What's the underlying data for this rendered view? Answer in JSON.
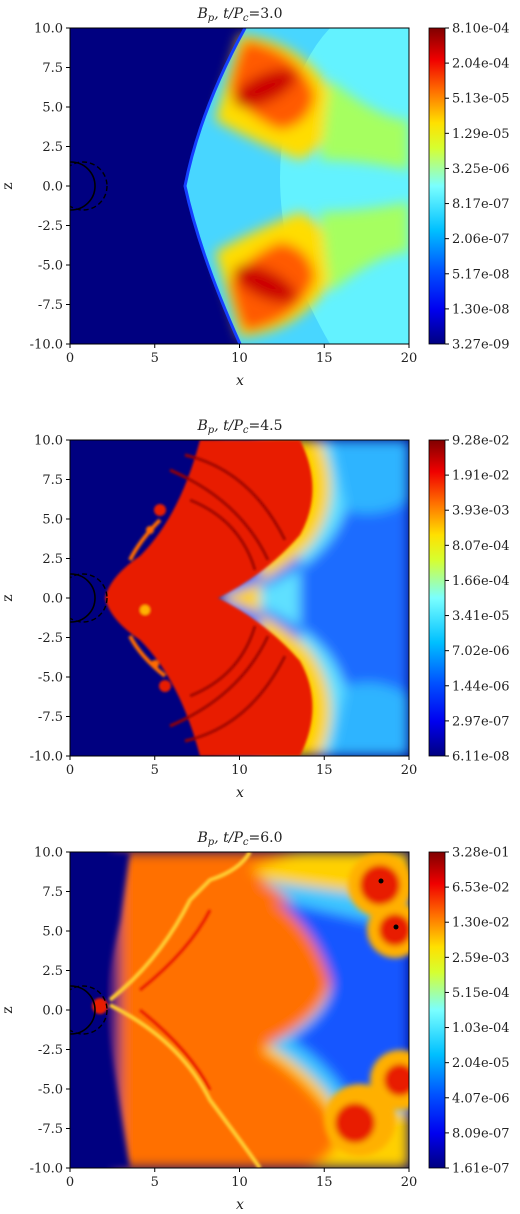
{
  "chart_data": [
    {
      "type": "heatmap",
      "title": "B_p, t/P_c=3.0",
      "title_var": "B",
      "title_sub": "p",
      "title_rest": ", t/P",
      "title_sub2": "c",
      "title_val": "=3.0",
      "xlabel": "x",
      "ylabel": "z",
      "xlim": [
        0,
        20
      ],
      "ylim": [
        -10,
        10
      ],
      "x_ticks": [
        "0",
        "5",
        "10",
        "15",
        "20"
      ],
      "y_ticks": [
        "10.0",
        "7.5",
        "5.0",
        "2.5",
        "0.0",
        "-2.5",
        "-5.0",
        "-7.5",
        "-10.0"
      ],
      "colorbar_labels": [
        "8.10e-04",
        "2.04e-04",
        "5.13e-05",
        "1.29e-05",
        "3.25e-06",
        "8.17e-07",
        "2.06e-07",
        "5.17e-08",
        "1.30e-08",
        "3.27e-09"
      ],
      "colormap": "jet",
      "scale": "log"
    },
    {
      "type": "heatmap",
      "title": "B_p, t/P_c=4.5",
      "title_var": "B",
      "title_sub": "p",
      "title_rest": ", t/P",
      "title_sub2": "c",
      "title_val": "=4.5",
      "xlabel": "x",
      "ylabel": "z",
      "xlim": [
        0,
        20
      ],
      "ylim": [
        -10,
        10
      ],
      "x_ticks": [
        "0",
        "5",
        "10",
        "15",
        "20"
      ],
      "y_ticks": [
        "10.0",
        "7.5",
        "5.0",
        "2.5",
        "0.0",
        "-2.5",
        "-5.0",
        "-7.5",
        "-10.0"
      ],
      "colorbar_labels": [
        "9.28e-02",
        "1.91e-02",
        "3.93e-03",
        "8.07e-04",
        "1.66e-04",
        "3.41e-05",
        "7.02e-06",
        "1.44e-06",
        "2.97e-07",
        "6.11e-08"
      ],
      "colormap": "jet",
      "scale": "log"
    },
    {
      "type": "heatmap",
      "title": "B_p, t/P_c=6.0",
      "title_var": "B",
      "title_sub": "p",
      "title_rest": ", t/P",
      "title_sub2": "c",
      "title_val": "=6.0",
      "xlabel": "x",
      "ylabel": "z",
      "xlim": [
        0,
        20
      ],
      "ylim": [
        -10,
        10
      ],
      "x_ticks": [
        "0",
        "5",
        "10",
        "15",
        "20"
      ],
      "y_ticks": [
        "10.0",
        "7.5",
        "5.0",
        "2.5",
        "0.0",
        "-2.5",
        "-5.0",
        "-7.5",
        "-10.0"
      ],
      "colorbar_labels": [
        "3.28e-01",
        "6.53e-02",
        "1.30e-02",
        "2.59e-03",
        "5.15e-04",
        "1.03e-04",
        "2.04e-05",
        "4.07e-06",
        "8.09e-07",
        "1.61e-07"
      ],
      "colormap": "jet",
      "scale": "log"
    }
  ],
  "colors": {
    "dark_red": "#800000",
    "red": "#e81c00",
    "orange": "#ff8c00",
    "yellow": "#ffe600",
    "cyan": "#2fd8ff",
    "light_cyan": "#7fe8ff",
    "blue": "#0a4cff",
    "dark_blue": "#000080"
  }
}
